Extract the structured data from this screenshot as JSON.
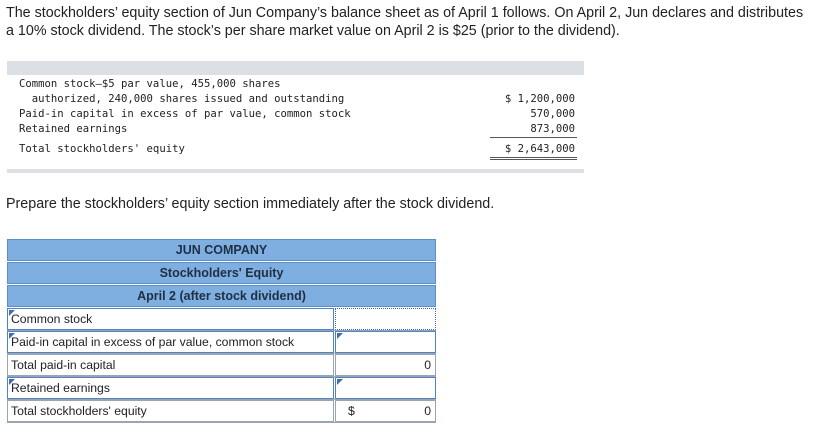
{
  "intro_text": "The stockholders’ equity section of Jun Company’s balance sheet as of April 1 follows. On April 2, Jun declares and distributes a 10% stock dividend. The stock’s per share market value on April 2 is $25 (prior to the dividend).",
  "given": {
    "line1": "Common stock—$5 par value, 455,000 shares",
    "line2": "  authorized, 240,000 shares issued and outstanding",
    "line2_value": "$ 1,200,000",
    "line3": "Paid-in capital in excess of par value, common stock",
    "line3_value": "570,000",
    "line4": "Retained earnings",
    "line4_value": "873,000",
    "line5": "Total stockholders' equity",
    "line5_value": "$ 2,643,000"
  },
  "prompt": "Prepare the stockholders’ equity section immediately after the stock dividend.",
  "sheet": {
    "company": "JUN COMPANY",
    "title": "Stockholders' Equity",
    "date": "April 2 (after stock dividend)",
    "rows": [
      {
        "label": "Common stock",
        "currency": "",
        "value": ""
      },
      {
        "label": "Paid-in capital in excess of par value, common stock",
        "currency": "",
        "value": ""
      },
      {
        "label": "Total paid-in capital",
        "currency": "",
        "value": "0"
      },
      {
        "label": "Retained earnings",
        "currency": "",
        "value": ""
      },
      {
        "label": "Total stockholders' equity",
        "currency": "$",
        "value": "0"
      }
    ]
  }
}
